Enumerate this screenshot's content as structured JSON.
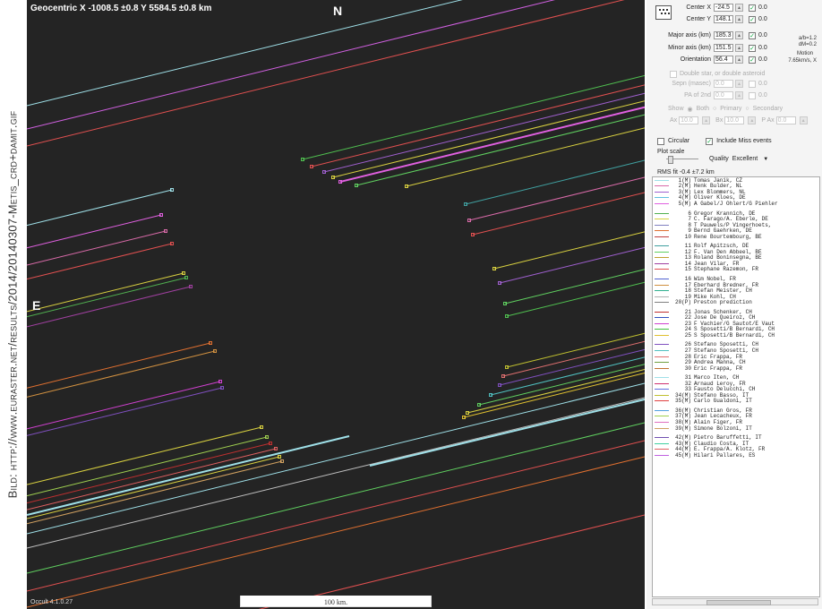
{
  "credit": "Bild: http://www.euraster.net/results/2014/20140307-Metis_crd+damit.gif",
  "plot": {
    "geocentric": "Geocentric X -1008.5 ±0.8 Y 5584.5 ±0.8 km",
    "north_label": "N",
    "east_label": "E",
    "version": "Occult 4.1.0.27",
    "scale_label": "100 km."
  },
  "panel": {
    "center_x": {
      "label": "Center X",
      "value": "-24.5",
      "fit": "0.0"
    },
    "center_y": {
      "label": "Center Y",
      "value": "148.1",
      "fit": "0.0"
    },
    "major_axis": {
      "label": "Major axis (km)",
      "value": "185.3",
      "fit": "0.0"
    },
    "minor_axis": {
      "label": "Minor axis (km)",
      "value": "151.5",
      "fit": "0.0"
    },
    "orientation": {
      "label": "Orientation",
      "value": "56.4",
      "fit": "0.0"
    },
    "double_star": "Double star, or double asteroid",
    "sep_label": "Sepn (masec)",
    "sep_value": "0.0",
    "sep_fit": "0.0",
    "pa_label": "PA of 2nd",
    "pa_value": "0.0",
    "pa_fit": "0.0",
    "show_label": "Show",
    "show_both": "Both",
    "show_primary": "Primary",
    "show_secondary": "Secondary",
    "ax_label": "Ax",
    "ax_value": "10.0",
    "bx_label": "Bx",
    "bx_value": "10.0",
    "pab_label": "P Ax",
    "pab_value": "0.0",
    "side_ab": "a/b=1.2",
    "side_dm": "dM=0.2",
    "side_motion": "Motion",
    "side_speed": "7.65km/s, X",
    "circular": "Circular",
    "include_miss": "Include Miss events",
    "plot_scale": "Plot scale",
    "quality_label": "Quality",
    "quality_value": "Excellent",
    "rms": "RMS fit -0.4 ±7.2 km"
  },
  "observers": [
    {
      "no": "1(M)",
      "name": "Tomas Janik, CZ",
      "color": "#9fe0e8"
    },
    {
      "no": "2(M)",
      "name": "Henk Bulder, NL",
      "color": "#d86aa8"
    },
    {
      "no": "3(M)",
      "name": "Lex Blommers, NL",
      "color": "#a060d0"
    },
    {
      "no": "4(M)",
      "name": "Oliver Kloes, DE",
      "color": "#60c0e0"
    },
    {
      "no": "5(M)",
      "name": "A Gabel/J Ohlert/G Piehler",
      "color": "#e060e0"
    },
    {
      "no": "6",
      "name": "Gregor Krannich, DE",
      "color": "#50b050"
    },
    {
      "no": "7",
      "name": "C. Farago/A. Eberle, DE",
      "color": "#d8d040"
    },
    {
      "no": "8",
      "name": "T Pauwels/P Vingerhoets,",
      "color": "#8080c0"
    },
    {
      "no": "9",
      "name": "Bernd Gaehrken, DE",
      "color": "#e07030"
    },
    {
      "no": "10",
      "name": "Rene Bourtembourg, BE",
      "color": "#c04040"
    },
    {
      "no": "11",
      "name": "Rolf Apitzsch, DE",
      "color": "#40a0a0"
    },
    {
      "no": "12",
      "name": "F. Van Den Abbeel, BE",
      "color": "#60d060"
    },
    {
      "no": "13",
      "name": "Roland Boninsegna, BE",
      "color": "#c0a030"
    },
    {
      "no": "14",
      "name": "Jean Vilar, FR",
      "color": "#a040a0"
    },
    {
      "no": "15",
      "name": "Stephane Razemon, FR",
      "color": "#e05050"
    },
    {
      "no": "16",
      "name": "Wim Nobel, FR",
      "color": "#5060d0"
    },
    {
      "no": "17",
      "name": "Eberhard Bredner, FR",
      "color": "#d09040"
    },
    {
      "no": "18",
      "name": "Stefan Meister, CH",
      "color": "#30b090"
    },
    {
      "no": "19",
      "name": "Mike Kohl, CH",
      "color": "#b0b0b0"
    },
    {
      "no": "20(P)",
      "name": "Preston prediction",
      "color": "#808080"
    },
    {
      "no": "21",
      "name": "Jonas Schenker, CH",
      "color": "#c03030"
    },
    {
      "no": "22",
      "name": "Jose De Queiroz, CH",
      "color": "#3050c0"
    },
    {
      "no": "23",
      "name": "F Vachier/G Sautot/E Vaut",
      "color": "#d040d0"
    },
    {
      "no": "24",
      "name": "S Sposetti/B Bernardi, CH",
      "color": "#40c040"
    },
    {
      "no": "25",
      "name": "S Sposetti/B Bernardi, CH",
      "color": "#e0c030"
    },
    {
      "no": "26",
      "name": "Stefano Sposetti, CH",
      "color": "#8050c0"
    },
    {
      "no": "27",
      "name": "Stefano Sposetti, CH",
      "color": "#50c0c0"
    },
    {
      "no": "28",
      "name": "Eric Frappa, FR",
      "color": "#e07070"
    },
    {
      "no": "29",
      "name": "Andrea Manna, CH",
      "color": "#70a040"
    },
    {
      "no": "30",
      "name": "Eric Frappa, FR",
      "color": "#c07030"
    },
    {
      "no": "31",
      "name": "Marco Iten, CH",
      "color": "#9fe0e8"
    },
    {
      "no": "32",
      "name": "Arnaud Leroy, FR",
      "color": "#d03070"
    },
    {
      "no": "33",
      "name": "Fausto Delucchi, CH",
      "color": "#6070e0"
    },
    {
      "no": "34(M)",
      "name": "Stefano Basso, IT",
      "color": "#c0c030"
    },
    {
      "no": "35(M)",
      "name": "Carlo Gualdoni, IT",
      "color": "#e04040"
    },
    {
      "no": "36(M)",
      "name": "Christian Gros, FR",
      "color": "#50a0e0"
    },
    {
      "no": "37(M)",
      "name": "Jean Lecacheux, FR",
      "color": "#a0d050"
    },
    {
      "no": "38(M)",
      "name": "Alain Figer, FR",
      "color": "#e070c0"
    },
    {
      "no": "39(M)",
      "name": "Simone Bolzoni, IT",
      "color": "#d0a060"
    },
    {
      "no": "42(M)",
      "name": "Pietro Baruffetti, IT",
      "color": "#7050b0"
    },
    {
      "no": "43(M)",
      "name": "Claudio Costa, IT",
      "color": "#40d0a0"
    },
    {
      "no": "44(M)",
      "name": "E. Frappa/A. Klotz, FR",
      "color": "#e06060"
    },
    {
      "no": "45(M)",
      "name": "Hilari Pallares, ES",
      "color": "#c060e0"
    }
  ]
}
